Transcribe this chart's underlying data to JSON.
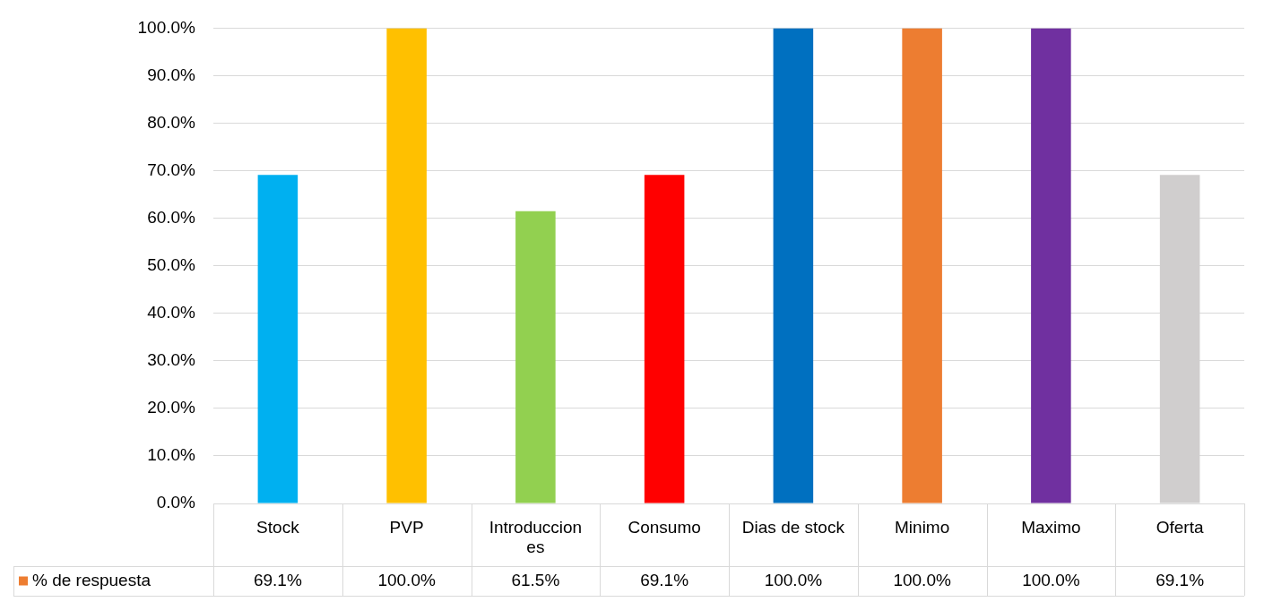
{
  "chart_data": {
    "type": "bar",
    "categories": [
      "Stock",
      "PVP",
      "Introducciones",
      "Consumo",
      "Dias de stock",
      "Minimo",
      "Maximo",
      "Oferta"
    ],
    "series": [
      {
        "name": "% de respuesta",
        "color": "#ed7d31",
        "colors": [
          "#00b0f0",
          "#ffc000",
          "#92d050",
          "#ff0000",
          "#0070c0",
          "#ed7d31",
          "#7030a0",
          "#d0cece"
        ],
        "values": [
          69.1,
          100.0,
          61.5,
          69.1,
          100.0,
          100.0,
          100.0,
          69.1
        ],
        "value_labels": [
          "69.1%",
          "100.0%",
          "61.5%",
          "69.1%",
          "100.0%",
          "100.0%",
          "100.0%",
          "69.1%"
        ]
      }
    ],
    "ylim": [
      0,
      100
    ],
    "yticks": [
      {
        "value": 0,
        "label": "0.0%"
      },
      {
        "value": 10,
        "label": "10.0%"
      },
      {
        "value": 20,
        "label": "20.0%"
      },
      {
        "value": 30,
        "label": "30.0%"
      },
      {
        "value": 40,
        "label": "40.0%"
      },
      {
        "value": 50,
        "label": "50.0%"
      },
      {
        "value": 60,
        "label": "60.0%"
      },
      {
        "value": 70,
        "label": "70.0%"
      },
      {
        "value": 80,
        "label": "80.0%"
      },
      {
        "value": 90,
        "label": "90.0%"
      },
      {
        "value": 100,
        "label": "100.0%"
      }
    ],
    "grid": "y",
    "legend": "bottom left"
  }
}
